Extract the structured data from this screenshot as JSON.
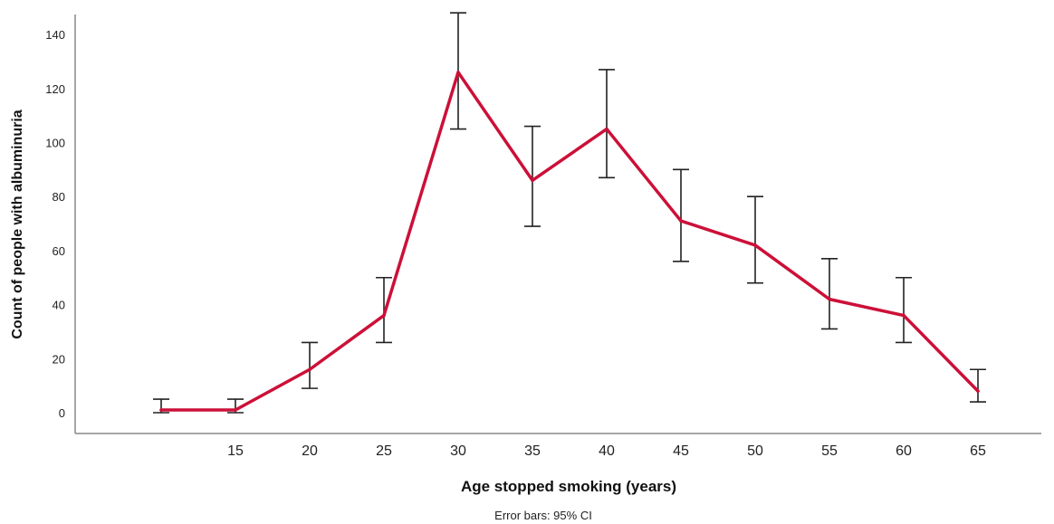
{
  "chart_data": {
    "type": "line",
    "x": [
      10,
      15,
      20,
      25,
      30,
      35,
      40,
      45,
      50,
      55,
      60,
      65
    ],
    "x_tick_labels": [
      "15",
      "20",
      "25",
      "30",
      "35",
      "40",
      "45",
      "50",
      "55",
      "60",
      "65"
    ],
    "values": [
      1,
      1,
      16,
      36,
      126,
      86,
      105,
      71,
      62,
      42,
      36,
      8
    ],
    "ci_lower": [
      0,
      0,
      9,
      26,
      105,
      69,
      87,
      56,
      48,
      31,
      26,
      4
    ],
    "ci_upper": [
      5,
      5,
      26,
      50,
      148,
      106,
      127,
      90,
      80,
      57,
      50,
      16
    ],
    "y_ticks": [
      0,
      20,
      40,
      60,
      80,
      100,
      120,
      140
    ],
    "ylim": [
      -8,
      148
    ],
    "xlabel": "Age stopped smoking (years)",
    "ylabel": "Count of people with albuminuria",
    "note": "Error bars: 95% CI",
    "colors": {
      "line": "#cc1038",
      "error_bar": "#222222",
      "axis": "#888888"
    }
  }
}
